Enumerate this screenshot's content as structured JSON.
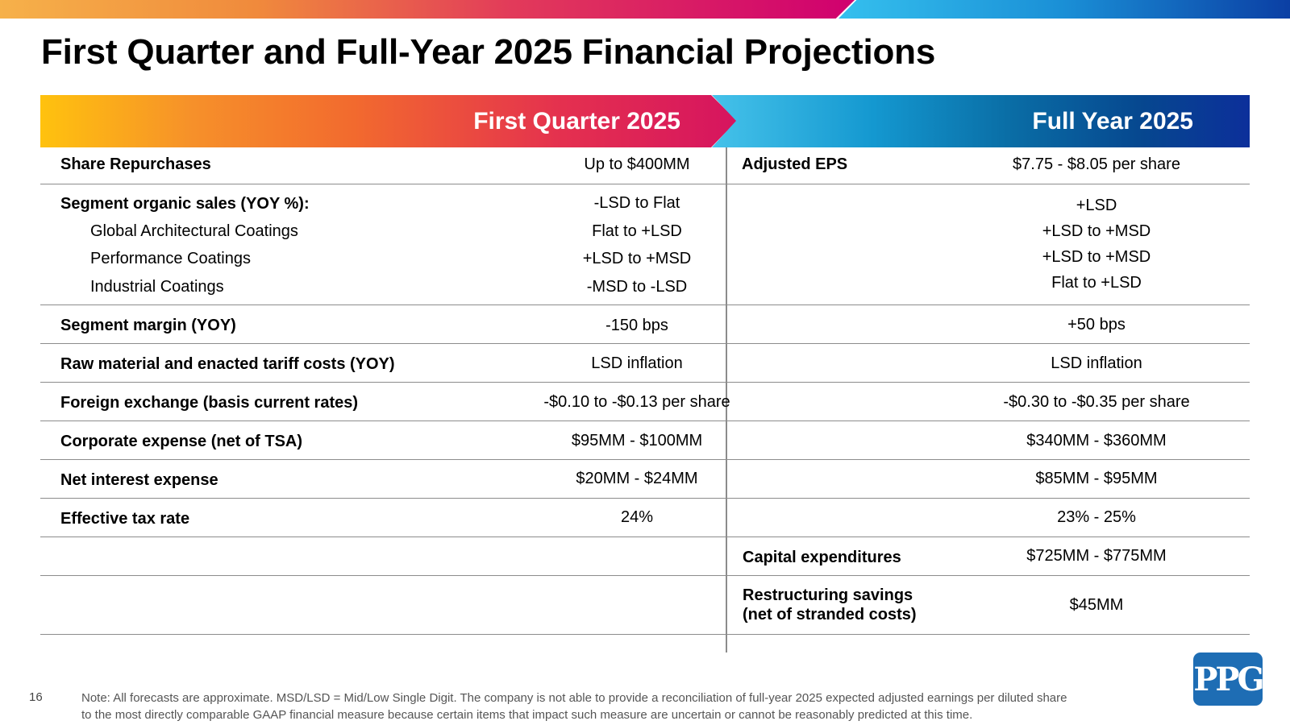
{
  "title": "First Quarter and Full-Year 2025 Financial Projections",
  "banners": {
    "q1": "First Quarter 2025",
    "fy": "Full Year 2025"
  },
  "rows": {
    "share_repurchases": {
      "label": "Share Repurchases",
      "q1": "Up to $400MM",
      "fy_label": "Adjusted EPS",
      "fy": "$7.75 - $8.05 per share"
    },
    "segment_organic": {
      "label": "Segment organic sales (YOY %):",
      "q1": "-LSD to Flat",
      "fy": "+LSD",
      "subs": [
        {
          "label": "Global Architectural Coatings",
          "q1": "Flat to +LSD",
          "fy": "+LSD to +MSD"
        },
        {
          "label": "Performance Coatings",
          "q1": "+LSD to +MSD",
          "fy": "+LSD to +MSD"
        },
        {
          "label": "Industrial Coatings",
          "q1": "-MSD to -LSD",
          "fy": "Flat to +LSD"
        }
      ]
    },
    "segment_margin": {
      "label": "Segment margin (YOY)",
      "q1": "-150 bps",
      "fy": "+50 bps"
    },
    "raw_material": {
      "label": "Raw material and enacted tariff costs (YOY)",
      "q1": "LSD inflation",
      "fy": "LSD inflation"
    },
    "fx": {
      "label": "Foreign exchange (basis current rates)",
      "q1": "-$0.10 to -$0.13 per share",
      "fy": "-$0.30 to -$0.35 per share"
    },
    "corporate_expense": {
      "label": "Corporate expense (net of TSA)",
      "q1": "$95MM - $100MM",
      "fy": "$340MM - $360MM"
    },
    "net_interest": {
      "label": "Net interest expense",
      "q1": "$20MM - $24MM",
      "fy": "$85MM - $95MM"
    },
    "tax_rate": {
      "label": "Effective tax rate",
      "q1": "24%",
      "fy": "23% - 25%"
    },
    "capex": {
      "fy_label": "Capital expenditures",
      "fy": "$725MM - $775MM"
    },
    "restructuring": {
      "fy_label_1": "Restructuring savings",
      "fy_label_2": "(net of stranded costs)",
      "fy": "$45MM"
    }
  },
  "footer": {
    "page_number": "16",
    "note_line1": "Note: All forecasts are approximate. MSD/LSD =  Mid/Low Single Digit. The company is not able to provide a reconciliation of full-year 2025 expected adjusted earnings per diluted share",
    "note_line2": "to the most directly comparable GAAP financial measure because certain items that impact such measure are uncertain or cannot be reasonably predicted at this time."
  },
  "logo_text": "PPG",
  "colors": {
    "q1_gradient": [
      "#ffc20e",
      "#f26a2e",
      "#d6145f"
    ],
    "fy_gradient": [
      "#45c2ea",
      "#0a6ea6",
      "#0c2f9a"
    ],
    "logo_blue": "#1e6db4",
    "rule_gray": "#8c8c8c"
  }
}
